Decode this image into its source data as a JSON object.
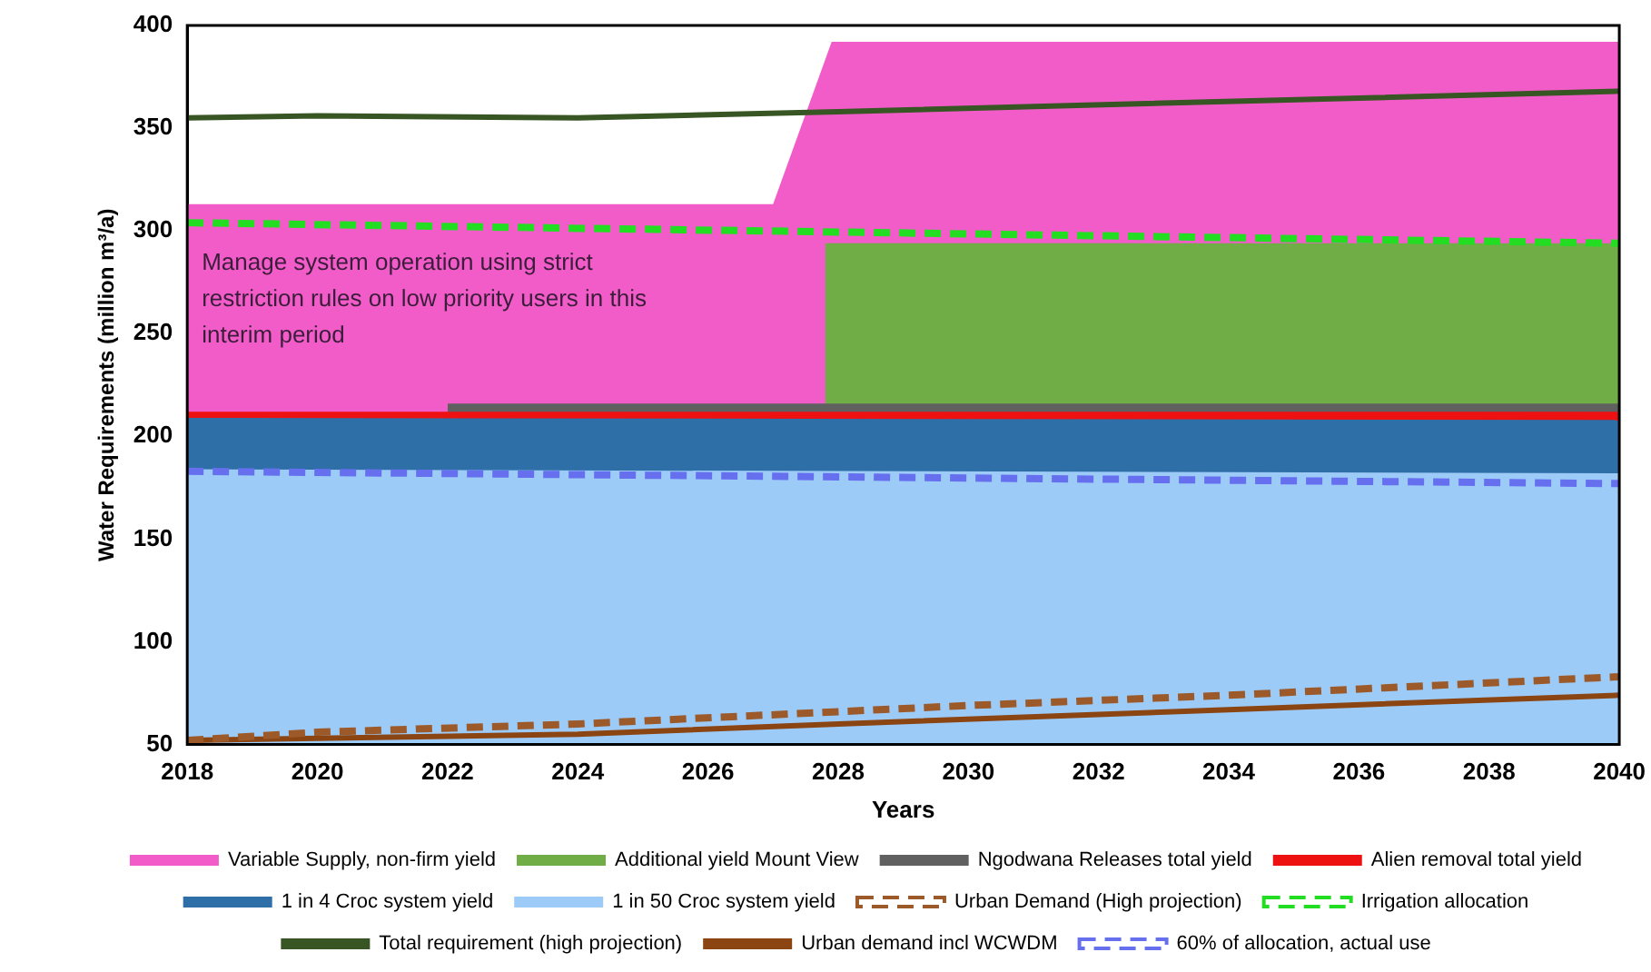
{
  "chart_data": {
    "type": "area",
    "xlabel": "Years",
    "ylabel": "Water Requirements (million m³/a)",
    "xlim": [
      2018,
      2040
    ],
    "xticks": [
      2018,
      2020,
      2022,
      2024,
      2026,
      2028,
      2030,
      2032,
      2034,
      2036,
      2038,
      2040
    ],
    "ylim": [
      50,
      400
    ],
    "yticks": [
      50,
      100,
      150,
      200,
      250,
      300,
      350,
      400
    ],
    "grid": false,
    "legend": "bottom",
    "marker": "none",
    "annotations": [
      "Manage system operation using strict restriction rules on low priority users in this  interim period"
    ],
    "series": [
      {
        "name": "Variable Supply, non-firm yield",
        "color": "#f25cc8",
        "x": [
          2018,
          2027,
          2027.9,
          2040
        ],
        "values": [
          313,
          313,
          392,
          392
        ]
      },
      {
        "name": "Additional yield Mount View",
        "color": "#70ad47",
        "x": [
          2027.8,
          2040
        ],
        "values": [
          294,
          294
        ]
      },
      {
        "name": "Ngodwana Releases total yield",
        "color": "#606060",
        "x": [
          2022,
          2040
        ],
        "values": [
          216,
          216
        ]
      },
      {
        "name": "Alien removal total yield",
        "color": "#ee1111",
        "x": [
          2018,
          2040
        ],
        "values": [
          212,
          212
        ]
      },
      {
        "name": "1 in 4 Croc system yield",
        "color": "#2f6fa8",
        "x": [
          2018,
          2040
        ],
        "values": [
          209,
          208
        ]
      },
      {
        "name": "1 in 50 Croc system yield",
        "color": "#9dcbf8",
        "x": [
          2018,
          2040
        ],
        "values": [
          184,
          182
        ]
      },
      {
        "name": "Urban Demand (High projection)",
        "type": "line",
        "line_style": "dashed",
        "color": "#9c5a2a",
        "x": [
          2018,
          2020,
          2024,
          2028,
          2030,
          2034,
          2040
        ],
        "values": [
          52,
          56,
          60,
          66,
          69,
          74,
          83
        ]
      },
      {
        "name": "Irrigation allocation",
        "type": "line",
        "line_style": "dashed",
        "color": "#22dd22",
        "x": [
          2018,
          2040
        ],
        "values": [
          304,
          294
        ]
      },
      {
        "name": "Total requirement (high projection)",
        "type": "line",
        "line_style": "solid",
        "color": "#375623",
        "x": [
          2018,
          2020,
          2024,
          2028,
          2040
        ],
        "values": [
          355,
          356,
          355,
          358,
          368
        ]
      },
      {
        "name": "Urban demand incl WCWDM",
        "type": "line",
        "line_style": "solid",
        "color": "#8b4513",
        "x": [
          2018,
          2024,
          2028,
          2034,
          2040
        ],
        "values": [
          52,
          55,
          60,
          67,
          74
        ]
      },
      {
        "name": "60% of allocation, actual use",
        "type": "line",
        "line_style": "dashed",
        "color": "#6670ee",
        "x": [
          2018,
          2040
        ],
        "values": [
          183,
          177
        ]
      }
    ]
  }
}
